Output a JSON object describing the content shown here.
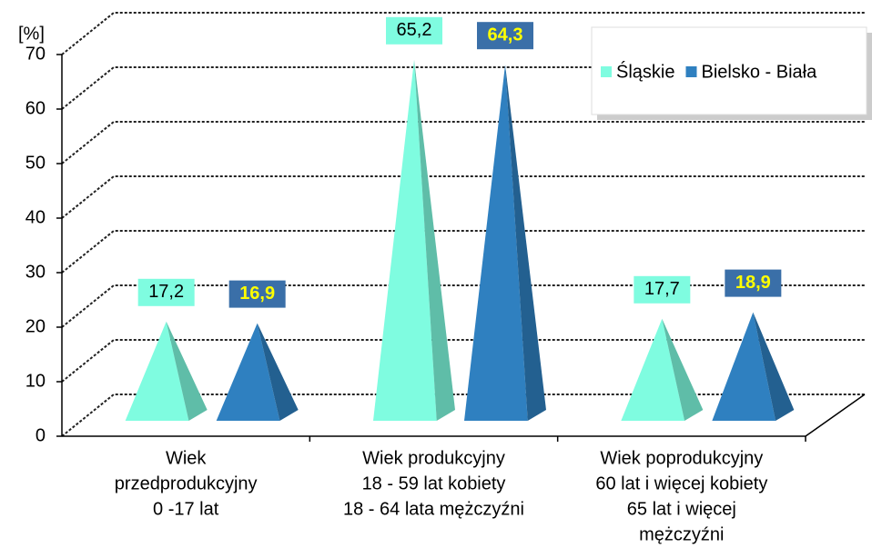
{
  "chart_data": {
    "type": "pyramid",
    "y_label": "[%]",
    "categories": [
      [
        "Wiek",
        "przedprodukcyjny",
        "0 -17 lat"
      ],
      [
        "Wiek produkcyjny",
        "18 - 59 lat kobiety",
        "18 - 64 lata mężczyźni"
      ],
      [
        "Wiek poprodukcyjny",
        "60 lat i więcej kobiety",
        "65 lat i więcej",
        "mężczyźni"
      ]
    ],
    "series": [
      {
        "name": "Śląskie",
        "color": "#7ffce0",
        "values": [
          17.2,
          65.2,
          17.7
        ],
        "value_labels": [
          "17,2",
          "65,2",
          "17,7"
        ]
      },
      {
        "name": "Bielsko - Biała",
        "color": "#2f80c0",
        "values": [
          16.9,
          64.3,
          18.9
        ],
        "value_labels": [
          "16,9",
          "64,3",
          "18,9"
        ]
      }
    ],
    "ylim": [
      0,
      70
    ],
    "yticks": [
      0,
      10,
      20,
      30,
      40,
      50,
      60,
      70
    ],
    "grid": true,
    "legend": "top-right"
  }
}
